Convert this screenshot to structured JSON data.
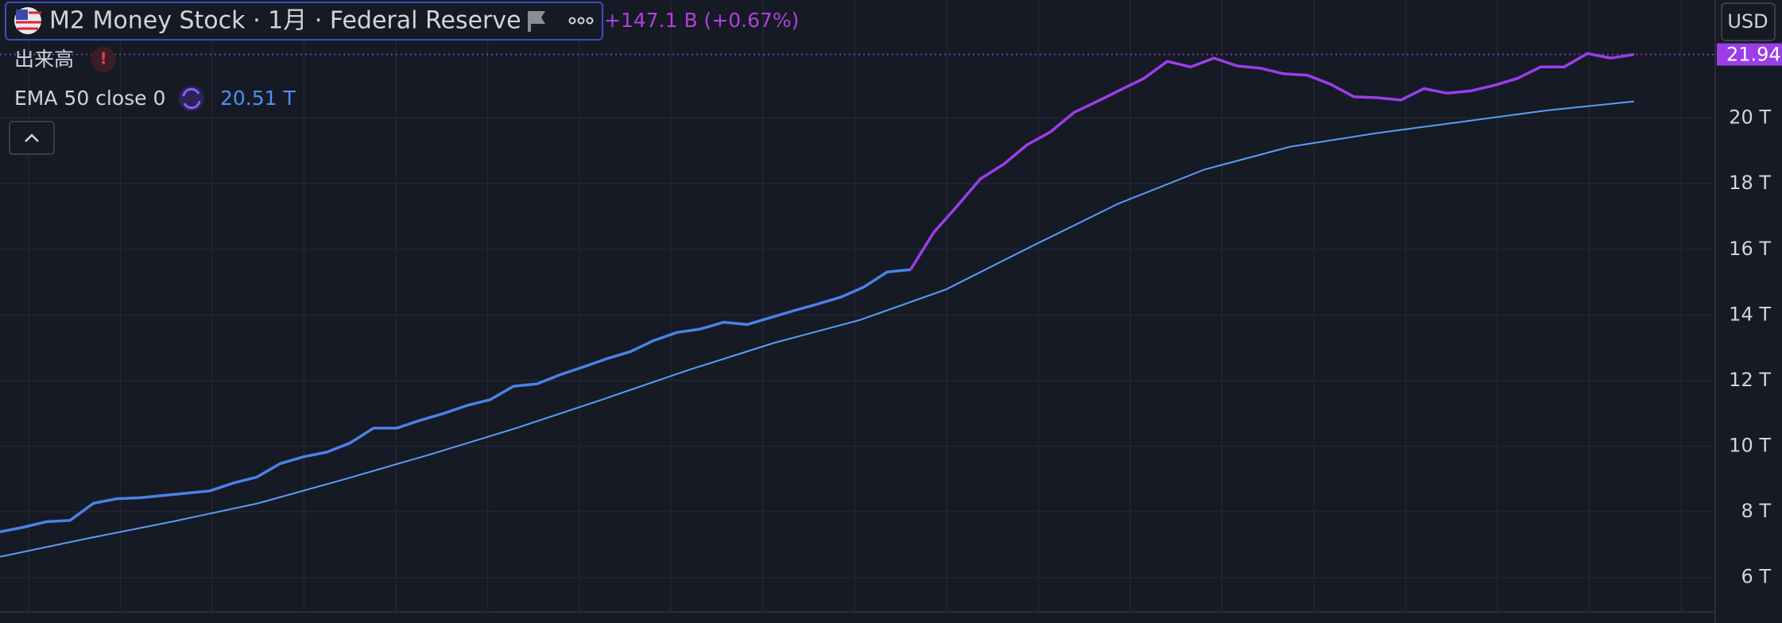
{
  "header": {
    "title": "M2 Money Stock · 1月 · Federal Reserve",
    "change": "+147.1 B (+0.67%)",
    "volume": "出来高",
    "indicator": "EMA 50 close 0",
    "indicator_value": "20.51 T",
    "currency": "USD"
  },
  "chart_data": {
    "type": "line",
    "ylim": [
      5,
      23.6
    ],
    "yticks": [
      {
        "value": 6,
        "label": "6 T"
      },
      {
        "value": 8,
        "label": "8 T"
      },
      {
        "value": 10,
        "label": "10 T"
      },
      {
        "value": 12,
        "label": "12 T"
      },
      {
        "value": 14,
        "label": "14 T"
      },
      {
        "value": 16,
        "label": "16 T"
      },
      {
        "value": 18,
        "label": "18 T"
      },
      {
        "value": 20,
        "label": "20 T"
      }
    ],
    "grid": true,
    "series": [
      {
        "color": "#4a82e6",
        "highlight_color": "#9c3ee8",
        "highlight_from": 39,
        "values": [
          7.39,
          7.53,
          7.7,
          7.74,
          8.26,
          8.4,
          8.43,
          8.5,
          8.57,
          8.64,
          8.88,
          9.06,
          9.47,
          9.68,
          9.82,
          10.1,
          10.55,
          10.55,
          10.79,
          11.0,
          11.24,
          11.42,
          11.83,
          11.9,
          12.18,
          12.42,
          12.67,
          12.88,
          13.22,
          13.47,
          13.57,
          13.78,
          13.71,
          13.92,
          14.13,
          14.33,
          14.54,
          14.85,
          15.31,
          15.38,
          16.52,
          17.32,
          18.15,
          18.6,
          19.19,
          19.58,
          20.17,
          20.51,
          20.86,
          21.21,
          21.73,
          21.56,
          21.83,
          21.59,
          21.52,
          21.35,
          21.31,
          21.03,
          20.65,
          20.62,
          20.55,
          20.9,
          20.76,
          20.83,
          21.0,
          21.21,
          21.56,
          21.56,
          21.97,
          21.83,
          21.94
        ]
      },
      {
        "color": "#5b9cf6",
        "values": [
          6.63,
          7.18,
          7.7,
          8.26,
          8.99,
          9.75,
          10.55,
          11.42,
          12.32,
          13.15,
          13.85,
          14.78,
          16.1,
          17.39,
          18.43,
          19.13,
          19.54,
          19.89,
          20.24,
          20.51
        ]
      }
    ]
  }
}
